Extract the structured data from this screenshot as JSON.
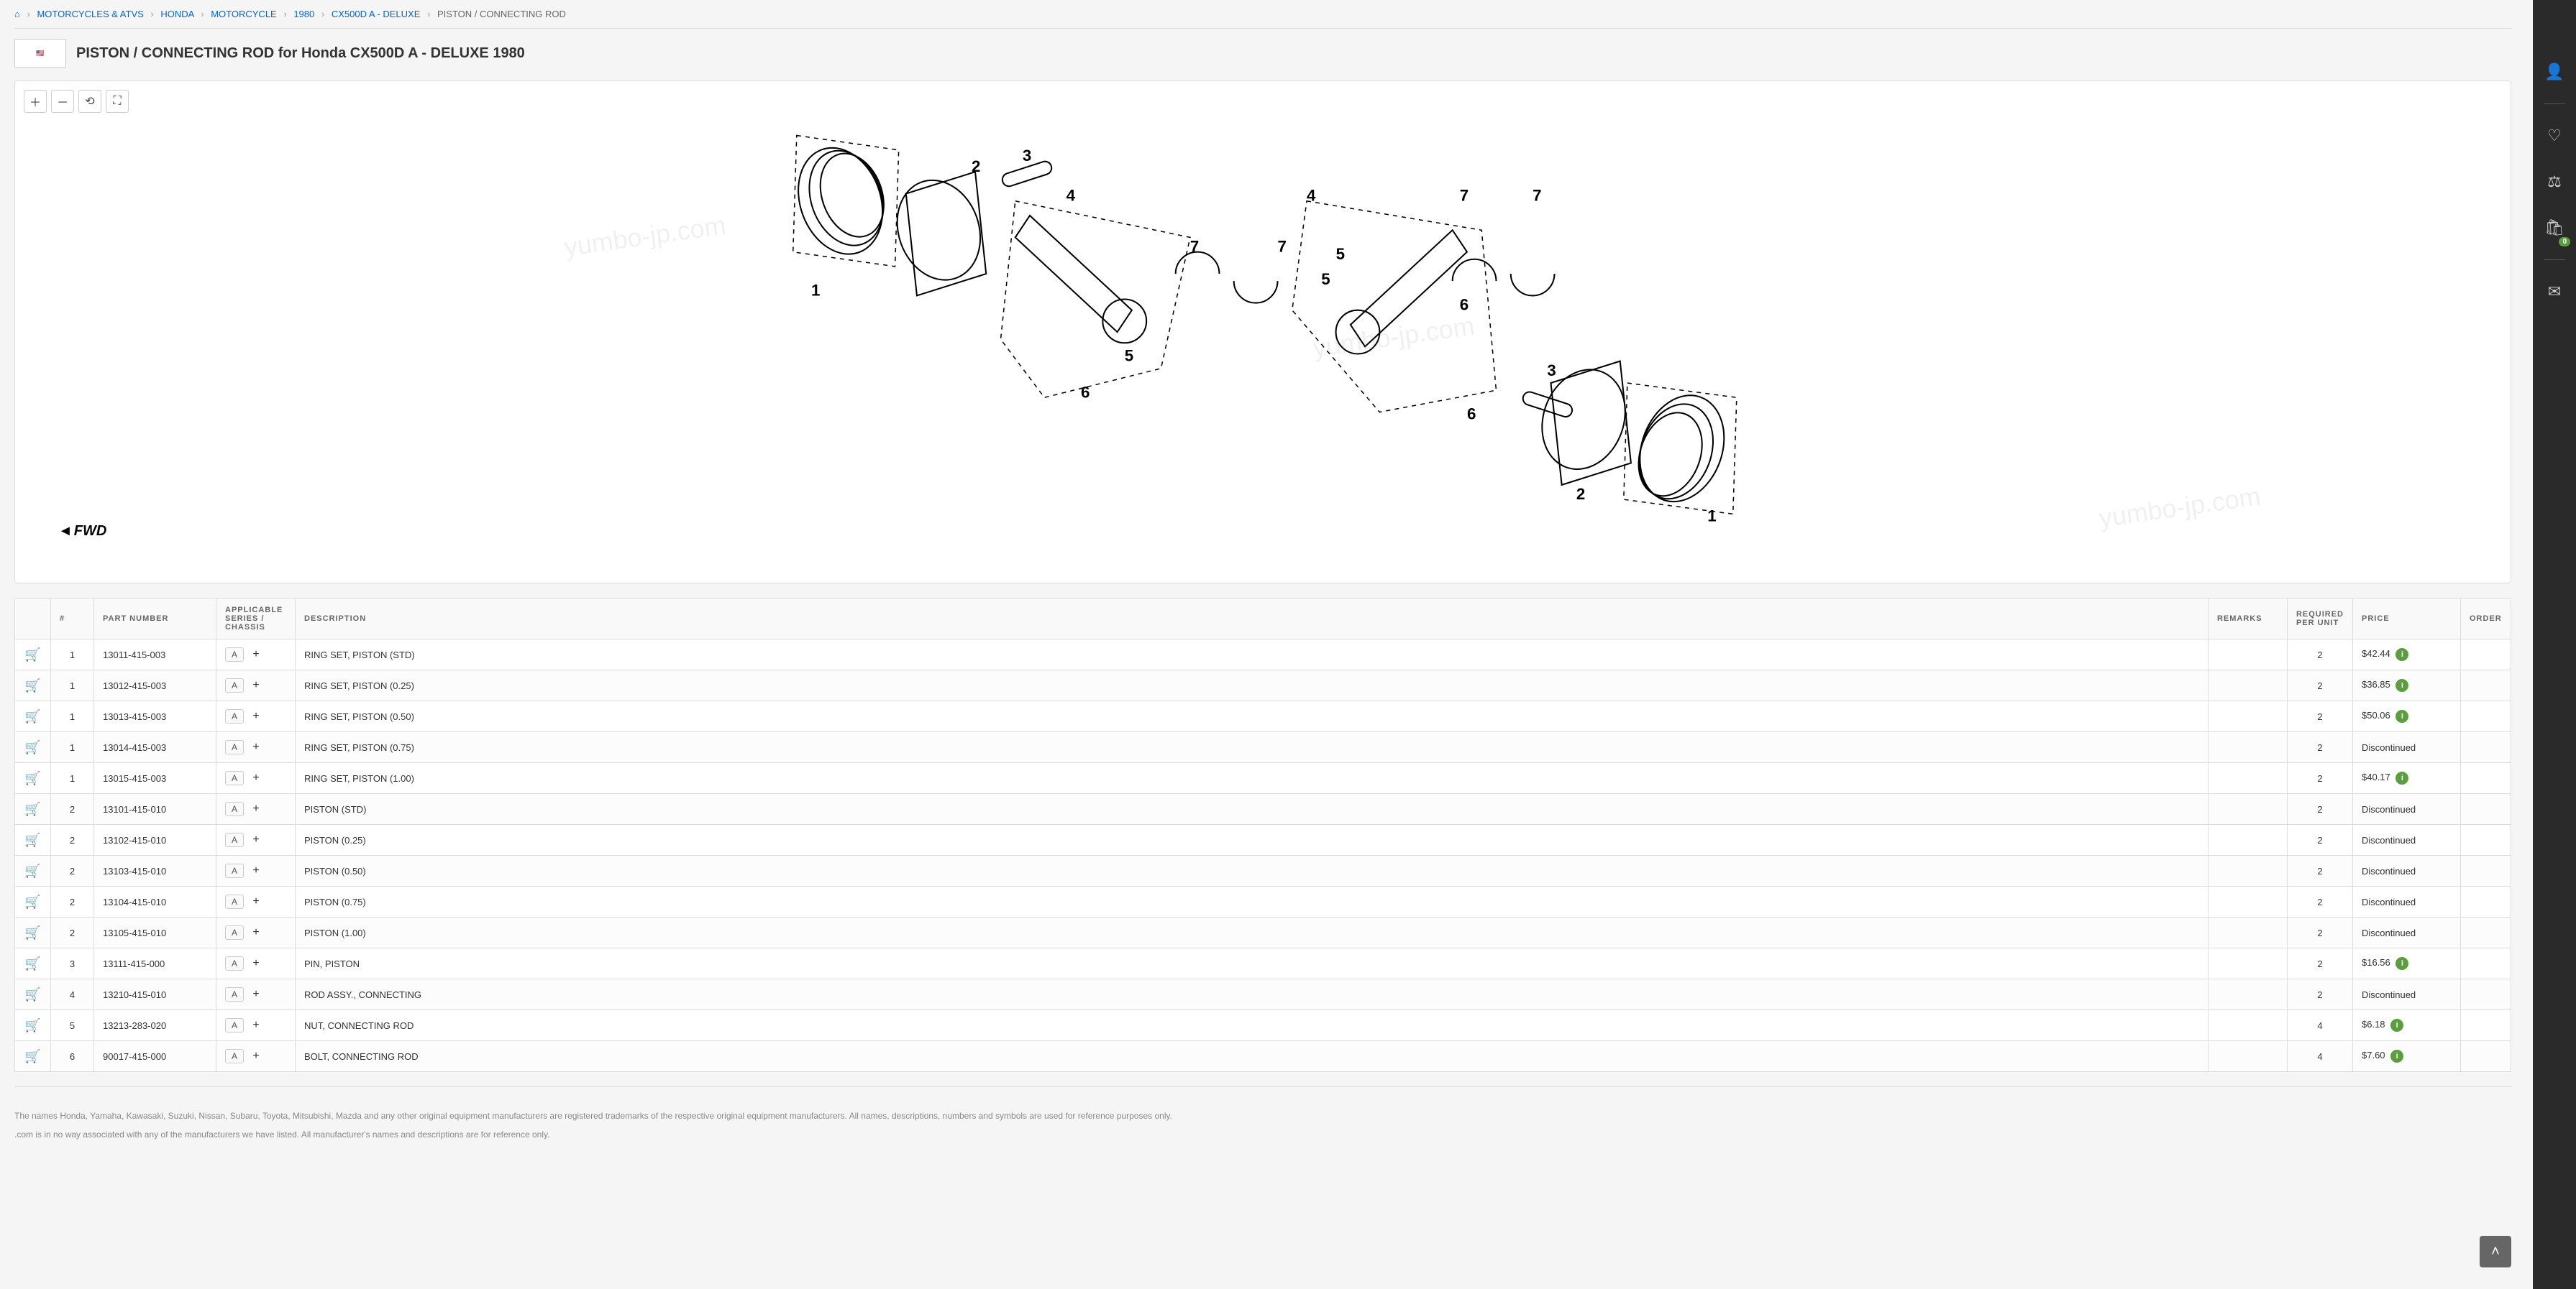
{
  "breadcrumb": {
    "items": [
      {
        "label": "⌂"
      },
      {
        "label": "MOTORCYCLES & ATVS"
      },
      {
        "label": "HONDA"
      },
      {
        "label": "MOTORCYCLE"
      },
      {
        "label": "1980"
      },
      {
        "label": "CX500D A - DELUXE"
      },
      {
        "label": "PISTON / CONNECTING ROD"
      }
    ]
  },
  "title": "PISTON / CONNECTING ROD for Honda CX500D A - DELUXE 1980",
  "diagram": {
    "callouts": [
      "1",
      "2",
      "3",
      "4",
      "5",
      "6",
      "7"
    ],
    "fwd_label": "FWD",
    "watermark": "yumbo-jp.com"
  },
  "toolbar": {
    "zoom_in_title": "Zoom in",
    "zoom_out_title": "Zoom out",
    "reset_title": "Reset",
    "fullscreen_title": "Fullscreen"
  },
  "table": {
    "cols": {
      "cart": "",
      "ref": "#",
      "part": "PART NUMBER",
      "series": "APPLICABLE SERIES / CHASSIS",
      "desc": "DESCRIPTION",
      "remarks": "REMARKS",
      "qty": "REQUIRED PER UNIT",
      "price": "PRICE",
      "order": "ORDER"
    },
    "rows": [
      {
        "ref": "1",
        "part": "13011-415-003",
        "series": "A",
        "desc": "RING SET, PISTON (STD)",
        "remarks": "",
        "qty": "2",
        "price": "$42.44",
        "info": true
      },
      {
        "ref": "1",
        "part": "13012-415-003",
        "series": "A",
        "desc": "RING SET, PISTON (0.25)",
        "remarks": "",
        "qty": "2",
        "price": "$36.85",
        "info": true
      },
      {
        "ref": "1",
        "part": "13013-415-003",
        "series": "A",
        "desc": "RING SET, PISTON (0.50)",
        "remarks": "",
        "qty": "2",
        "price": "$50.06",
        "info": true
      },
      {
        "ref": "1",
        "part": "13014-415-003",
        "series": "A",
        "desc": "RING SET, PISTON (0.75)",
        "remarks": "",
        "qty": "2",
        "price": "Discontinued",
        "info": false
      },
      {
        "ref": "1",
        "part": "13015-415-003",
        "series": "A",
        "desc": "RING SET, PISTON (1.00)",
        "remarks": "",
        "qty": "2",
        "price": "$40.17",
        "info": true
      },
      {
        "ref": "2",
        "part": "13101-415-010",
        "series": "A",
        "desc": "PISTON (STD)",
        "remarks": "",
        "qty": "2",
        "price": "Discontinued",
        "info": false
      },
      {
        "ref": "2",
        "part": "13102-415-010",
        "series": "A",
        "desc": "PISTON (0.25)",
        "remarks": "",
        "qty": "2",
        "price": "Discontinued",
        "info": false
      },
      {
        "ref": "2",
        "part": "13103-415-010",
        "series": "A",
        "desc": "PISTON (0.50)",
        "remarks": "",
        "qty": "2",
        "price": "Discontinued",
        "info": false
      },
      {
        "ref": "2",
        "part": "13104-415-010",
        "series": "A",
        "desc": "PISTON (0.75)",
        "remarks": "",
        "qty": "2",
        "price": "Discontinued",
        "info": false
      },
      {
        "ref": "2",
        "part": "13105-415-010",
        "series": "A",
        "desc": "PISTON (1.00)",
        "remarks": "",
        "qty": "2",
        "price": "Discontinued",
        "info": false
      },
      {
        "ref": "3",
        "part": "13111-415-000",
        "series": "A",
        "desc": "PIN, PISTON",
        "remarks": "",
        "qty": "2",
        "price": "$16.56",
        "info": true
      },
      {
        "ref": "4",
        "part": "13210-415-010",
        "series": "A",
        "desc": "ROD ASSY., CONNECTING",
        "remarks": "",
        "qty": "2",
        "price": "Discontinued",
        "info": false
      },
      {
        "ref": "5",
        "part": "13213-283-020",
        "series": "A",
        "desc": "NUT, CONNECTING ROD",
        "remarks": "",
        "qty": "4",
        "price": "$6.18",
        "info": true
      },
      {
        "ref": "6",
        "part": "90017-415-000",
        "series": "A",
        "desc": "BOLT, CONNECTING ROD",
        "remarks": "",
        "qty": "4",
        "price": "$7.60",
        "info": true
      }
    ]
  },
  "sidebar": {
    "user_title": "Account",
    "wish_title": "Wishlist",
    "compare_title": "Compare",
    "cart_title": "Cart",
    "cart_count": "0",
    "email_title": "Subscribe"
  },
  "footer": {
    "line1": "The names Honda, Yamaha, Kawasaki, Suzuki, Nissan, Subaru, Toyota, Mitsubishi, Mazda and any other original equipment manufacturers are registered trademarks of the respective original equipment manufacturers. All names, descriptions, numbers and symbols are used for reference purposes only.",
    "line2": ".com is in no way associated with any of the manufacturers we have listed. All manufacturer's names and descriptions are for reference only."
  },
  "totop_title": "Back to top"
}
